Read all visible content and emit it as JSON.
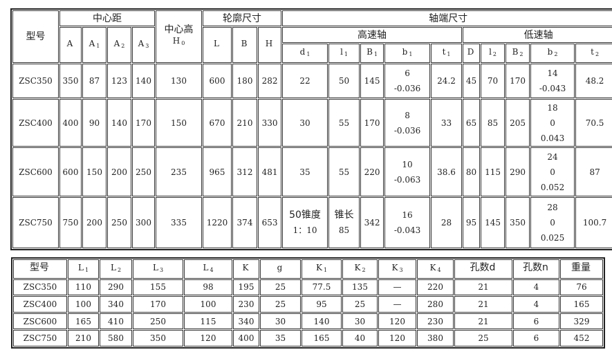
{
  "table1": {
    "header": {
      "model": "型号",
      "center_distance": "中心距",
      "center_height": "中心高",
      "center_height_sym": {
        "base": "H",
        "sub": "0"
      },
      "outline": "轮廓尺寸",
      "shaft_end": "轴端尺寸",
      "high_speed": "高速轴",
      "low_speed": "低速轴",
      "cd_cols": [
        {
          "base": "A",
          "sub": ""
        },
        {
          "base": "A",
          "sub": "1"
        },
        {
          "base": "A",
          "sub": "2"
        },
        {
          "base": "A",
          "sub": "3"
        }
      ],
      "outline_cols": [
        {
          "base": "L",
          "sub": ""
        },
        {
          "base": "B",
          "sub": ""
        },
        {
          "base": "H",
          "sub": ""
        }
      ],
      "high_cols": [
        {
          "base": "d",
          "sub": "1"
        },
        {
          "base": "l",
          "sub": "1"
        },
        {
          "base": "B",
          "sub": "1"
        },
        {
          "base": "b",
          "sub": "1"
        },
        {
          "base": "t",
          "sub": "1"
        }
      ],
      "low_cols": [
        {
          "base": "D",
          "sub": ""
        },
        {
          "base": "l",
          "sub": "2"
        },
        {
          "base": "B",
          "sub": "2"
        },
        {
          "base": "b",
          "sub": "2"
        },
        {
          "base": "t",
          "sub": "2"
        }
      ]
    },
    "rows": [
      [
        "ZSC350",
        "350",
        "87",
        "123",
        "140",
        "130",
        "600",
        "180",
        "282",
        [
          "22"
        ],
        [
          "50"
        ],
        "145",
        [
          "6",
          "-0.036"
        ],
        "24.2",
        "45",
        "70",
        "170",
        [
          "14",
          "-0.043"
        ],
        "48.2"
      ],
      [
        "ZSC400",
        "400",
        "90",
        "140",
        "170",
        "150",
        "670",
        "210",
        "330",
        [
          "30"
        ],
        [
          "55"
        ],
        "170",
        [
          "8",
          "-0.036"
        ],
        "33",
        "65",
        "85",
        "205",
        [
          "18",
          "0",
          "0.043"
        ],
        "70.5"
      ],
      [
        "ZSC600",
        "600",
        "150",
        "200",
        "250",
        "235",
        "965",
        "312",
        "481",
        [
          "35"
        ],
        [
          "55"
        ],
        "220",
        [
          "10",
          "-0.063"
        ],
        "38.6",
        "80",
        "115",
        "290",
        [
          "24",
          "0",
          "0.052"
        ],
        "87"
      ],
      [
        "ZSC750",
        "750",
        "200",
        "250",
        "300",
        "335",
        "1220",
        "374",
        "653",
        [
          "50锥度",
          "1：10"
        ],
        [
          "锥长",
          "85"
        ],
        "342",
        [
          "16",
          "-0.043"
        ],
        "28",
        "95",
        "145",
        "350",
        [
          "28",
          "0",
          "0.025"
        ],
        "100.7"
      ]
    ]
  },
  "table2": {
    "header": [
      {
        "base": "型号",
        "sub": ""
      },
      {
        "base": "L",
        "sub": "1"
      },
      {
        "base": "L",
        "sub": "2"
      },
      {
        "base": "L",
        "sub": "3"
      },
      {
        "base": "L",
        "sub": "4"
      },
      {
        "base": "K",
        "sub": ""
      },
      {
        "base": "g",
        "sub": ""
      },
      {
        "base": "K",
        "sub": "1"
      },
      {
        "base": "K",
        "sub": "2"
      },
      {
        "base": "K",
        "sub": "3"
      },
      {
        "base": "K",
        "sub": "4"
      },
      {
        "base": "孔数d",
        "sub": ""
      },
      {
        "base": "孔数n",
        "sub": ""
      },
      {
        "base": "重量",
        "sub": ""
      }
    ],
    "rows": [
      [
        "ZSC350",
        "110",
        "290",
        "155",
        "98",
        "195",
        "25",
        "77.5",
        "135",
        "—",
        "220",
        "21",
        "4",
        "76"
      ],
      [
        "ZSC400",
        "100",
        "340",
        "170",
        "100",
        "230",
        "25",
        "95",
        "25",
        "—",
        "280",
        "21",
        "4",
        "165"
      ],
      [
        "ZSC600",
        "165",
        "410",
        "250",
        "115",
        "340",
        "30",
        "140",
        "30",
        "120",
        "230",
        "21",
        "6",
        "329"
      ],
      [
        "ZSC750",
        "210",
        "580",
        "350",
        "120",
        "400",
        "35",
        "165",
        "40",
        "120",
        "380",
        "25",
        "6",
        "452"
      ]
    ]
  }
}
